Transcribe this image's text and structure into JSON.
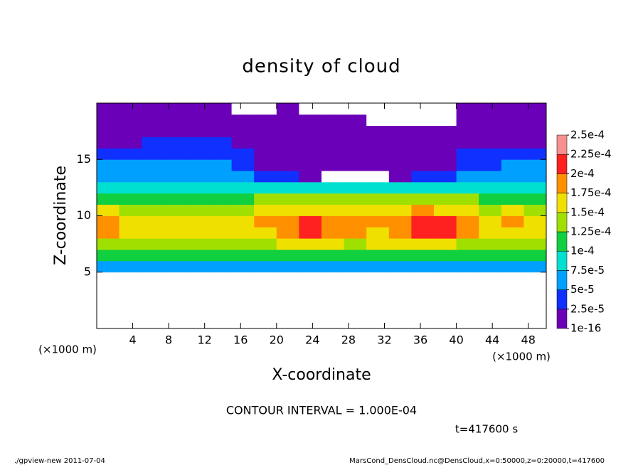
{
  "chart_data": {
    "type": "heatmap",
    "title": "density of cloud",
    "xlabel": "X-coordinate",
    "ylabel": "Z-coordinate",
    "x_units": "(×1000 m)",
    "contour_note": "CONTOUR INTERVAL = 1.000E-04",
    "time_label": "t=417600 s",
    "footer_left": "./gpview-new  2011-07-04",
    "footer_right": "MarsCond_DensCloud.nc@DensCloud,x=0:50000,z=0:20000,t=417600",
    "xlim": [
      0,
      50
    ],
    "ylim": [
      0,
      20
    ],
    "xticks": [
      4,
      8,
      12,
      16,
      20,
      24,
      28,
      32,
      36,
      40,
      44,
      48
    ],
    "yticks": [
      5,
      10,
      15
    ],
    "x": [
      1.25,
      3.75,
      6.25,
      8.75,
      11.25,
      13.75,
      16.25,
      18.75,
      21.25,
      23.75,
      26.25,
      28.75,
      31.25,
      33.75,
      36.25,
      38.75,
      41.25,
      43.75,
      46.25,
      48.75
    ],
    "z": [
      5.5,
      6.5,
      7.5,
      8.5,
      9.5,
      10.5,
      11.5,
      12.5,
      13.5,
      14.5,
      15.5,
      16.5,
      17.5,
      18.5,
      19.5
    ],
    "values": [
      [
        6e-05,
        5.5e-05,
        6e-05,
        6.5e-05,
        6e-05,
        5.5e-05,
        6e-05,
        6.5e-05,
        6e-05,
        5.5e-05,
        6e-05,
        6.5e-05,
        6e-05,
        5.5e-05,
        6e-05,
        6.5e-05,
        6e-05,
        5.5e-05,
        6e-05,
        6.5e-05
      ],
      [
        0.000105,
        0.0001,
        0.000105,
        0.00011,
        0.0001,
        0.000105,
        0.00011,
        0.000105,
        0.0001,
        0.00011,
        0.000105,
        0.00011,
        0.000105,
        0.0001,
        0.00011,
        0.000105,
        0.0001,
        0.000105,
        0.00011,
        0.000105
      ],
      [
        0.00014,
        0.000135,
        0.00013,
        0.000135,
        0.00014,
        0.000135,
        0.00014,
        0.000145,
        0.00015,
        0.000155,
        0.00015,
        0.000145,
        0.00015,
        0.000155,
        0.00016,
        0.00015,
        0.000145,
        0.00014,
        0.000135,
        0.00014
      ],
      [
        0.00018,
        0.00016,
        0.000155,
        0.00015,
        0.000155,
        0.00016,
        0.000165,
        0.00017,
        0.000185,
        0.000205,
        0.00019,
        0.000175,
        0.00017,
        0.000185,
        0.00021,
        0.000205,
        0.00018,
        0.000165,
        0.00017,
        0.00016
      ],
      [
        0.00019,
        0.00017,
        0.00016,
        0.000155,
        0.00016,
        0.000165,
        0.00017,
        0.000175,
        0.00019,
        0.0002,
        0.000195,
        0.00018,
        0.000175,
        0.00019,
        0.000215,
        0.00021,
        0.000185,
        0.00017,
        0.000175,
        0.000165
      ],
      [
        0.00015,
        0.00014,
        0.000135,
        0.00013,
        0.000135,
        0.00014,
        0.000145,
        0.00015,
        0.00016,
        0.00017,
        0.000165,
        0.000155,
        0.000155,
        0.00016,
        0.000175,
        0.00017,
        0.000155,
        0.000145,
        0.00015,
        0.00014
      ],
      [
        0.00012,
        0.000115,
        0.00011,
        0.00011,
        0.000115,
        0.000115,
        0.00012,
        0.000125,
        0.00013,
        0.000135,
        0.00013,
        0.00013,
        0.00013,
        0.00013,
        0.000135,
        0.00013,
        0.000125,
        0.00012,
        0.00012,
        0.000115
      ],
      [
        9.5e-05,
        9e-05,
        8.5e-05,
        8e-05,
        8.5e-05,
        9e-05,
        9e-05,
        8.5e-05,
        8e-05,
        8e-05,
        7.5e-05,
        7.5e-05,
        7.5e-05,
        8e-05,
        8e-05,
        8.5e-05,
        9e-05,
        9e-05,
        9.5e-05,
        9.5e-05
      ],
      [
        7e-05,
        6.5e-05,
        6e-05,
        6e-05,
        6e-05,
        6.5e-05,
        6e-05,
        4.5e-05,
        3e-05,
        2e-05,
        0,
        0,
        0,
        1.5e-05,
        2.5e-05,
        4e-05,
        5.5e-05,
        6.5e-05,
        7e-05,
        7e-05
      ],
      [
        5e-05,
        5.5e-05,
        6e-05,
        6e-05,
        6e-05,
        5.5e-05,
        4e-05,
        2e-05,
        1.2e-05,
        1e-05,
        1e-05,
        1e-05,
        1e-05,
        1e-05,
        1.2e-05,
        2e-05,
        3.5e-05,
        4.5e-05,
        5e-05,
        5e-05
      ],
      [
        3.5e-05,
        4e-05,
        4.5e-05,
        4.5e-05,
        4.5e-05,
        4e-05,
        3e-05,
        1.5e-05,
        1e-05,
        1e-05,
        1e-05,
        1e-05,
        1e-05,
        1e-05,
        1e-05,
        1.5e-05,
        2.5e-05,
        3e-05,
        3.5e-05,
        3.5e-05
      ],
      [
        1.5e-05,
        2e-05,
        3e-05,
        3.5e-05,
        3.5e-05,
        3e-05,
        2e-05,
        1e-05,
        1e-05,
        1e-05,
        1e-05,
        1e-05,
        1e-05,
        1e-05,
        1e-05,
        1e-05,
        1e-05,
        1.5e-05,
        2e-05,
        2e-05
      ],
      [
        1e-05,
        1e-05,
        1.5e-05,
        2e-05,
        1.5e-05,
        1e-05,
        1e-05,
        1e-05,
        1e-05,
        1e-05,
        1e-05,
        1e-05,
        1e-05,
        1e-05,
        1e-05,
        1e-05,
        1e-05,
        1e-05,
        1e-05,
        1e-05
      ],
      [
        1e-05,
        1e-05,
        1e-05,
        1e-05,
        1e-05,
        1e-05,
        1e-05,
        1e-05,
        1e-05,
        1e-05,
        1e-05,
        1e-05,
        0,
        0,
        0,
        0,
        1e-05,
        1e-05,
        1e-05,
        1e-05
      ],
      [
        1e-05,
        1e-05,
        1e-05,
        1e-05,
        1e-05,
        1e-05,
        0,
        0,
        1e-05,
        0,
        0,
        0,
        0,
        0,
        0,
        0,
        1e-05,
        1e-05,
        1e-05,
        1e-05
      ]
    ],
    "levels": [
      {
        "value": 1e-16,
        "label": "1e-16"
      },
      {
        "value": 2.5e-05,
        "label": "2.5e-5"
      },
      {
        "value": 5e-05,
        "label": "5e-5"
      },
      {
        "value": 7.5e-05,
        "label": "7.5e-5"
      },
      {
        "value": 0.0001,
        "label": "1e-4"
      },
      {
        "value": 0.000125,
        "label": "1.25e-4"
      },
      {
        "value": 0.00015,
        "label": "1.5e-4"
      },
      {
        "value": 0.000175,
        "label": "1.75e-4"
      },
      {
        "value": 0.0002,
        "label": "2e-4"
      },
      {
        "value": 0.000225,
        "label": "2.25e-4"
      },
      {
        "value": 0.00025,
        "label": "2.5e-4"
      }
    ],
    "colors": [
      "#6a00b8",
      "#1030ff",
      "#00a0ff",
      "#00e0d0",
      "#10d040",
      "#a0e000",
      "#f0e000",
      "#ff9000",
      "#ff2020",
      "#f89090"
    ],
    "below_color": "#ffffff"
  }
}
